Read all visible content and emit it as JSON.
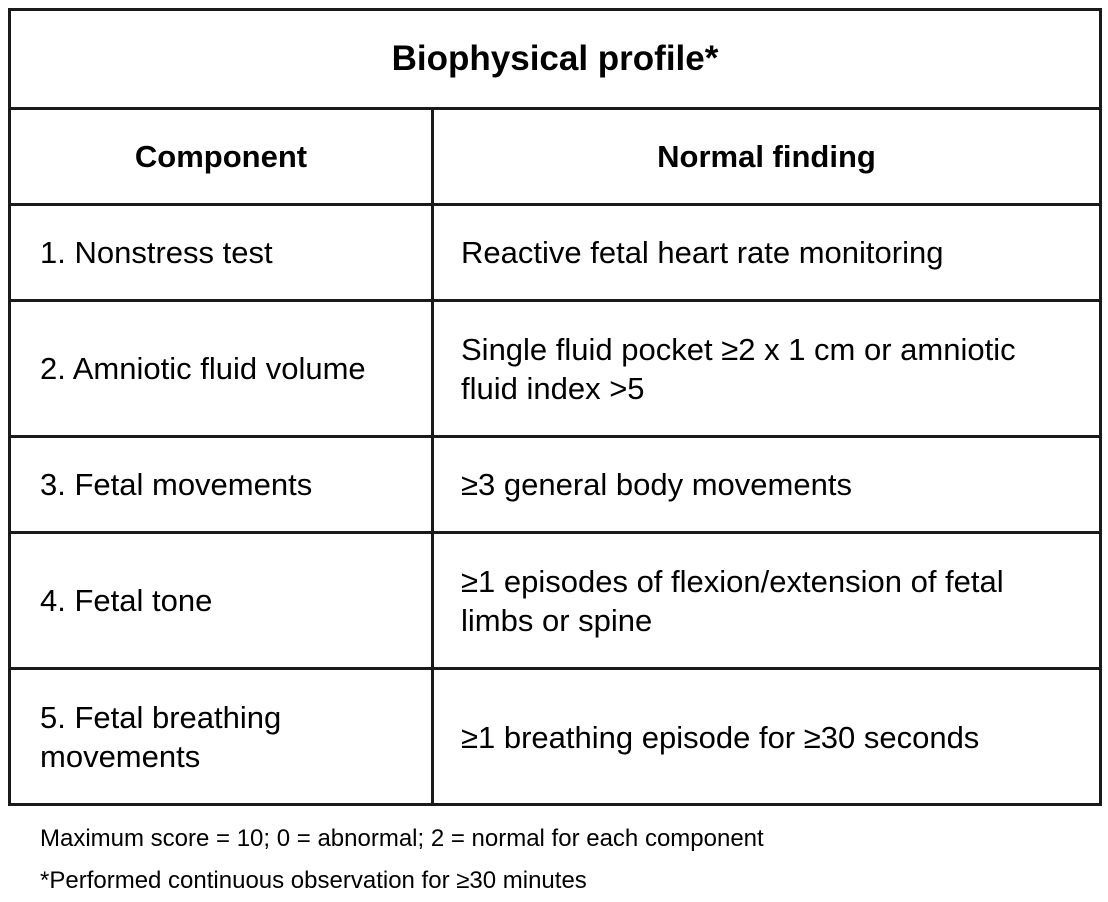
{
  "table": {
    "title": "Biophysical profile*",
    "headers": {
      "component": "Component",
      "finding": "Normal finding"
    },
    "rows": [
      {
        "component": "1. Nonstress test",
        "finding": "Reactive fetal heart rate monitoring"
      },
      {
        "component": "2. Amniotic fluid volume",
        "finding": "Single fluid pocket ≥2 x 1 cm or amniotic fluid index >5"
      },
      {
        "component": "3. Fetal movements",
        "finding": "≥3 general body movements"
      },
      {
        "component": "4. Fetal tone",
        "finding": "≥1 episodes of flexion/extension of fetal limbs or spine"
      },
      {
        "component": "5. Fetal breathing movements",
        "finding": "≥1 breathing episode for ≥30 seconds"
      }
    ]
  },
  "notes": {
    "score": "Maximum score = 10; 0 = abnormal; 2 = normal for each component",
    "observation": "*Performed continuous observation for ≥30 minutes"
  }
}
